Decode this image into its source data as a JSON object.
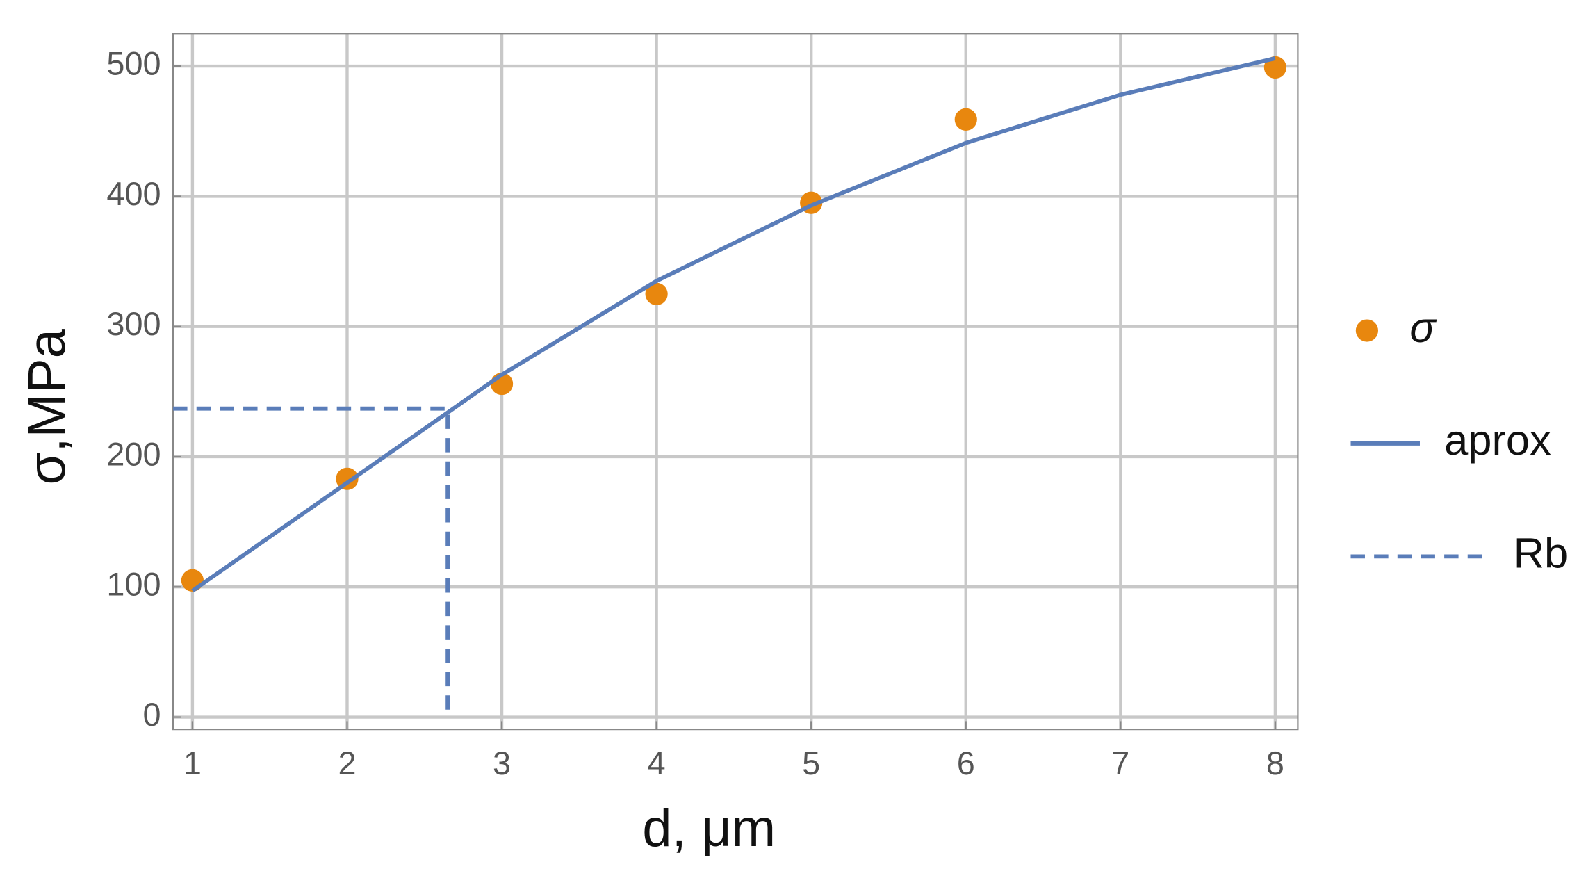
{
  "chart_data": {
    "type": "scatter",
    "x_label": "d, μm",
    "y_label": "σ,MPa",
    "xlim": [
      0.875,
      8.146
    ],
    "ylim": [
      -9.4,
      525
    ],
    "xticks": [
      1,
      2,
      3,
      4,
      5,
      6,
      7,
      8
    ],
    "yticks": [
      0,
      100,
      200,
      300,
      400,
      500
    ],
    "grid": true,
    "legend": "right",
    "series": [
      {
        "name": "σ",
        "type": "scatter",
        "color": "#e8870e",
        "x": [
          1,
          2,
          3,
          4,
          5,
          6,
          8
        ],
        "values": [
          105,
          183,
          256,
          325,
          395,
          459,
          499
        ]
      },
      {
        "name": "aprox",
        "type": "line",
        "color": "#5a7db9",
        "x": [
          1,
          2,
          3,
          4,
          5,
          6,
          7,
          8
        ],
        "values": [
          97,
          180,
          263,
          335,
          393,
          441,
          478,
          506
        ]
      },
      {
        "name": "Rb",
        "type": "dashed",
        "color": "#5a7db9",
        "x": [
          0.875,
          2.65,
          2.65
        ],
        "values": [
          237,
          237,
          0
        ]
      }
    ]
  }
}
